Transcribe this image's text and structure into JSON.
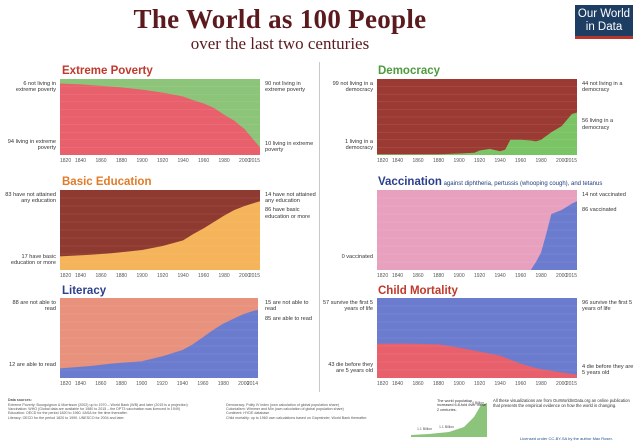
{
  "header": {
    "title": "The World as 100 People",
    "subtitle": "over the last two centuries"
  },
  "logo": {
    "line1": "Our World",
    "line2": "in Data"
  },
  "chart_data": [
    {
      "id": "poverty",
      "type": "area",
      "title": "Extreme Poverty",
      "title_color": "#c0392b",
      "colors": {
        "top": "#8cc47a",
        "bottom": "#e8606b"
      },
      "x": [
        1820,
        1840,
        1860,
        1880,
        1900,
        1920,
        1940,
        1950,
        1960,
        1970,
        1980,
        1990,
        2000,
        2010,
        2015
      ],
      "values": [
        94,
        93,
        91,
        89,
        86,
        82,
        77,
        72,
        68,
        62,
        53,
        45,
        34,
        18,
        10
      ],
      "xlim": [
        1820,
        2015
      ],
      "ylim": [
        0,
        100
      ],
      "ticks": [
        "1820",
        "1840",
        "1860",
        "1880",
        "1900",
        "1920",
        "1940",
        "1960",
        "1980",
        "2000",
        "2015"
      ],
      "labels": {
        "left_top": "6 not living in extreme poverty",
        "left_bottom": "94 living in extreme poverty",
        "right_top": "90 not living in extreme poverty",
        "right_bottom": "10 living in extreme poverty"
      }
    },
    {
      "id": "democracy",
      "type": "area",
      "title": "Democracy",
      "title_color": "#4e9a3e",
      "colors": {
        "top": "#9b3a33",
        "bottom": "#7bc465"
      },
      "x": [
        1820,
        1850,
        1880,
        1900,
        1915,
        1920,
        1930,
        1940,
        1945,
        1950,
        1960,
        1970,
        1975,
        1980,
        1990,
        2000,
        2010,
        2015
      ],
      "values": [
        1,
        1,
        1,
        2,
        3,
        6,
        8,
        5,
        7,
        20,
        20,
        19,
        18,
        20,
        30,
        38,
        54,
        56
      ],
      "xlim": [
        1820,
        2015
      ],
      "ylim": [
        0,
        100
      ],
      "ticks": [
        "1820",
        "1840",
        "1860",
        "1880",
        "1900",
        "1920",
        "1940",
        "1960",
        "1980",
        "2000",
        "2015"
      ],
      "labels": {
        "left_top": "99 not living in a democracy",
        "left_bottom": "1 living in a democracy",
        "right_top": "44 not living in a democracy",
        "right_bottom": "56 living in a democracy"
      }
    },
    {
      "id": "education",
      "type": "area",
      "title": "Basic Education",
      "title_color": "#e07b2a",
      "colors": {
        "top": "#8f3a30",
        "bottom": "#f5b45a"
      },
      "x": [
        1820,
        1850,
        1870,
        1900,
        1920,
        1940,
        1950,
        1960,
        1970,
        1980,
        1990,
        2000,
        2010,
        2015
      ],
      "values": [
        17,
        19,
        21,
        25,
        30,
        37,
        45,
        52,
        60,
        68,
        75,
        80,
        84,
        86
      ],
      "xlim": [
        1820,
        2015
      ],
      "ylim": [
        0,
        100
      ],
      "ticks": [
        "1820",
        "1840",
        "1860",
        "1880",
        "1900",
        "1920",
        "1940",
        "1960",
        "1980",
        "2000",
        "2015"
      ],
      "labels": {
        "left_top": "83 have not attained any education",
        "left_bottom": "17 have basic education or more",
        "right_top": "14 have not attained any education",
        "right_bottom": "86 have basic education or more"
      }
    },
    {
      "id": "vaccination",
      "type": "area",
      "title": "Vaccination",
      "note": "against diphtheria, pertussis (whooping cough), and tetanus",
      "title_color": "#2b3f8c",
      "colors": {
        "top": "#e8a0bf",
        "bottom": "#6b7ccf"
      },
      "x": [
        1820,
        1970,
        1975,
        1980,
        1985,
        1990,
        2000,
        2010,
        2015
      ],
      "values": [
        0,
        0,
        10,
        22,
        45,
        70,
        75,
        83,
        86
      ],
      "xlim": [
        1820,
        2015
      ],
      "ylim": [
        0,
        100
      ],
      "ticks": [
        "1820",
        "1840",
        "1860",
        "1880",
        "1900",
        "1920",
        "1940",
        "1960",
        "1980",
        "2000",
        "2015"
      ],
      "labels": {
        "left_top": "",
        "left_bottom": "0 vaccinated",
        "right_top": "14 not vaccinated",
        "right_bottom": "86 vaccinated"
      }
    },
    {
      "id": "literacy",
      "type": "area",
      "title": "Literacy",
      "title_color": "#2b3f8c",
      "colors": {
        "top": "#e8917d",
        "bottom": "#6b7ccf"
      },
      "x": [
        1820,
        1850,
        1870,
        1900,
        1920,
        1940,
        1950,
        1960,
        1970,
        1980,
        1990,
        2000,
        2010,
        2014
      ],
      "values": [
        12,
        15,
        18,
        21,
        27,
        35,
        42,
        51,
        60,
        68,
        74,
        80,
        84,
        85
      ],
      "xlim": [
        1820,
        2014
      ],
      "ylim": [
        0,
        100
      ],
      "ticks": [
        "1820",
        "1840",
        "1860",
        "1880",
        "1900",
        "1920",
        "1940",
        "1960",
        "1980",
        "2000",
        "2014"
      ],
      "labels": {
        "left_top": "88 are not able to read",
        "left_bottom": "12 are able to read",
        "right_top": "15 are not able to read",
        "right_bottom": "85 are able to read"
      }
    },
    {
      "id": "mortality",
      "type": "area",
      "title": "Child Mortality",
      "title_color": "#c0392b",
      "colors": {
        "top": "#6b7ccf",
        "bottom": "#e8606b"
      },
      "x": [
        1820,
        1850,
        1880,
        1900,
        1920,
        1940,
        1950,
        1960,
        1970,
        1980,
        1990,
        2000,
        2010,
        2015
      ],
      "values": [
        43,
        43,
        42,
        38,
        33,
        28,
        23,
        18,
        14,
        11,
        9,
        7,
        5,
        4
      ],
      "xlim": [
        1820,
        2015
      ],
      "ylim": [
        0,
        100
      ],
      "ticks": [
        "1820",
        "1840",
        "1860",
        "1880",
        "1900",
        "1920",
        "1940",
        "1960",
        "1980",
        "2000",
        "2015"
      ],
      "labels": {
        "left_top": "57 survive the first 5 years of life",
        "left_bottom": "43 die before they are 5 years old",
        "right_top": "96 survive the first 5 years of life",
        "right_bottom": "4 die before they are 5 years old"
      }
    }
  ],
  "footer": {
    "sources_heading": "Data sources:",
    "sources_left": "Extreme Poverty: Bourguignon & Morrisson (2002) up to 1970 – World Bank (WB) and later (2015 is a projection)\nVaccination: WHO (Global data are available for 1980 to 2015 – the DPT3 vaccination was licenced in 1949)\nEducation: OECD for the period 1820 to 1960. IIASA for the time thereafter.\nLiteracy: OECD for the period 1820 to 1990. UNESCO for 2004 and later.",
    "sources_right": "Democracy: Polity IV index (own calculation of global population share)\nColonialism: Wimmer and Min (own calculation of global population share)\nContinent: HYDE database\nChild mortality: up to 1960 own calculations based on Gapminder, World Bank thereafter.",
    "population_note": "The world population increased 6.8-fold over these 2 centuries.",
    "population_labels": [
      "7.4 Billion",
      "1.1 Billion",
      "1.1 Billion"
    ],
    "right_text": "All these visualizations are from OurWorldInData.org an online publication that presents the empirical evidence on how the world is changing.",
    "license": "Licensed under CC-BY-SA by the author Max Roser."
  }
}
